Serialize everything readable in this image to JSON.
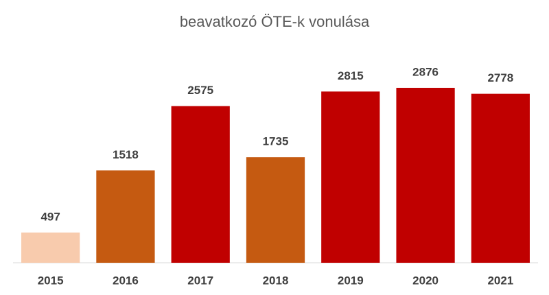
{
  "chart_data": {
    "type": "bar",
    "title": "beavatkozó ÖTE-k vonulása",
    "categories": [
      "2015",
      "2016",
      "2017",
      "2018",
      "2019",
      "2020",
      "2021"
    ],
    "values": [
      497,
      1518,
      2575,
      1735,
      2815,
      2876,
      2778
    ],
    "colors": [
      "#f8cbad",
      "#c55a11",
      "#c00000",
      "#c55a11",
      "#c00000",
      "#c00000",
      "#c00000"
    ],
    "ylim": [
      0,
      3000
    ]
  }
}
